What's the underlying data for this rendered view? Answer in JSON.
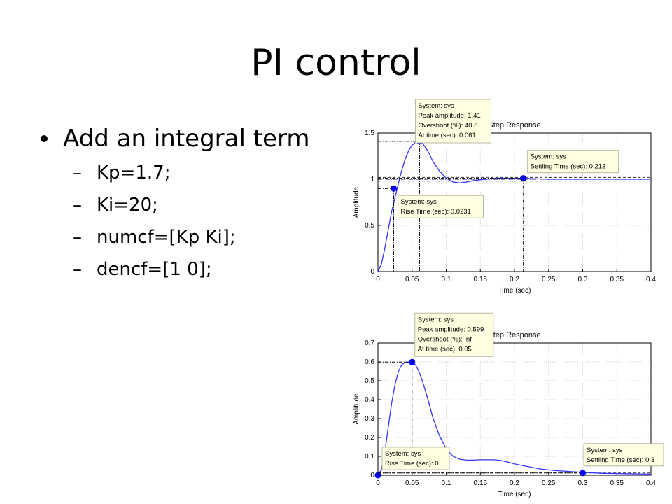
{
  "slide": {
    "title": "PI control",
    "bullet": "Add an integral term",
    "subitems": [
      "Kp=1.7;",
      "Ki=20;",
      "numcf=[Kp Ki];",
      "dencf=[1 0];"
    ]
  },
  "colors": {
    "response": "#3333ff",
    "marker": "#0000ee",
    "tip_bg": "#ffffe1",
    "tip_border": "#b8b8a0",
    "grid": "#cfcfcf"
  },
  "chart_data": [
    {
      "type": "line",
      "title": "Step Response",
      "xlabel": "Time (sec)",
      "ylabel": "Amplitude",
      "xlim": [
        0,
        0.4
      ],
      "ylim": [
        0,
        1.5
      ],
      "xticks": [
        "0",
        "0.05",
        "0.1",
        "0.15",
        "0.2",
        "0.25",
        "0.3",
        "0.35",
        "0.4"
      ],
      "yticks": [
        "0",
        "0.5",
        "1",
        "1.5"
      ],
      "x": [
        0,
        0.005,
        0.01,
        0.015,
        0.02,
        0.025,
        0.03,
        0.035,
        0.04,
        0.045,
        0.05,
        0.055,
        0.061,
        0.065,
        0.07,
        0.075,
        0.08,
        0.09,
        0.1,
        0.11,
        0.12,
        0.13,
        0.14,
        0.15,
        0.16,
        0.17,
        0.18,
        0.19,
        0.2,
        0.213,
        0.25,
        0.3,
        0.35,
        0.4
      ],
      "y": [
        0,
        0.08,
        0.25,
        0.45,
        0.65,
        0.8,
        0.96,
        1.1,
        1.22,
        1.31,
        1.37,
        1.4,
        1.41,
        1.39,
        1.34,
        1.28,
        1.2,
        1.09,
        1.01,
        0.97,
        0.96,
        0.97,
        0.985,
        0.995,
        1.0,
        1.01,
        1.012,
        1.01,
        1.01,
        1.01,
        1.0,
        1.0,
        1.0,
        1.0
      ],
      "reference_lines": [
        1.0,
        0.98,
        1.02
      ],
      "markers": [
        {
          "kind": "peak",
          "x": 0.061,
          "y": 1.41,
          "lines": [
            "System: sys",
            "Peak amplitude: 1.41",
            "Overshoot (%): 40.8",
            "At time (sec): 0.061"
          ]
        },
        {
          "kind": "rise",
          "x": 0.0231,
          "y": 0.9,
          "lines": [
            "System: sys",
            "Rise Time (sec): 0.0231"
          ]
        },
        {
          "kind": "settling",
          "x": 0.213,
          "y": 1.01,
          "lines": [
            "System: sys",
            "Settling Time (sec): 0.213"
          ]
        }
      ]
    },
    {
      "type": "line",
      "title": "Step Response",
      "xlabel": "Time (sec)",
      "ylabel": "Amplitude",
      "xlim": [
        0,
        0.4
      ],
      "ylim": [
        0,
        0.7
      ],
      "xticks": [
        "0",
        "0.05",
        "0.1",
        "0.15",
        "0.2",
        "0.25",
        "0.3",
        "0.35",
        "0.4"
      ],
      "yticks": [
        "0",
        "0.1",
        "0.2",
        "0.3",
        "0.4",
        "0.5",
        "0.6",
        "0.7"
      ],
      "x": [
        0,
        0.005,
        0.01,
        0.015,
        0.02,
        0.025,
        0.03,
        0.035,
        0.04,
        0.045,
        0.05,
        0.055,
        0.06,
        0.065,
        0.07,
        0.075,
        0.08,
        0.09,
        0.1,
        0.11,
        0.12,
        0.13,
        0.14,
        0.15,
        0.16,
        0.17,
        0.18,
        0.19,
        0.2,
        0.22,
        0.24,
        0.26,
        0.28,
        0.3,
        0.33,
        0.36,
        0.4
      ],
      "y": [
        0,
        0.03,
        0.12,
        0.25,
        0.38,
        0.48,
        0.55,
        0.585,
        0.598,
        0.599,
        0.599,
        0.585,
        0.55,
        0.5,
        0.44,
        0.38,
        0.31,
        0.21,
        0.14,
        0.1,
        0.085,
        0.08,
        0.08,
        0.082,
        0.082,
        0.082,
        0.078,
        0.07,
        0.06,
        0.045,
        0.032,
        0.025,
        0.02,
        0.015,
        0.01,
        0.008,
        0.006
      ],
      "reference_lines": [
        0,
        0.012
      ],
      "markers": [
        {
          "kind": "peak",
          "x": 0.05,
          "y": 0.599,
          "lines": [
            "System: sys",
            "Peak amplitude: 0.599",
            "Overshoot (%): Inf",
            "At time (sec): 0.05"
          ]
        },
        {
          "kind": "rise",
          "x": 0,
          "y": 0,
          "lines": [
            "System: sys",
            "Rise Time (sec): 0"
          ]
        },
        {
          "kind": "settling",
          "x": 0.3,
          "y": 0.012,
          "lines": [
            "System: sys",
            "Settling Time (sec): 0.3"
          ]
        }
      ]
    }
  ]
}
